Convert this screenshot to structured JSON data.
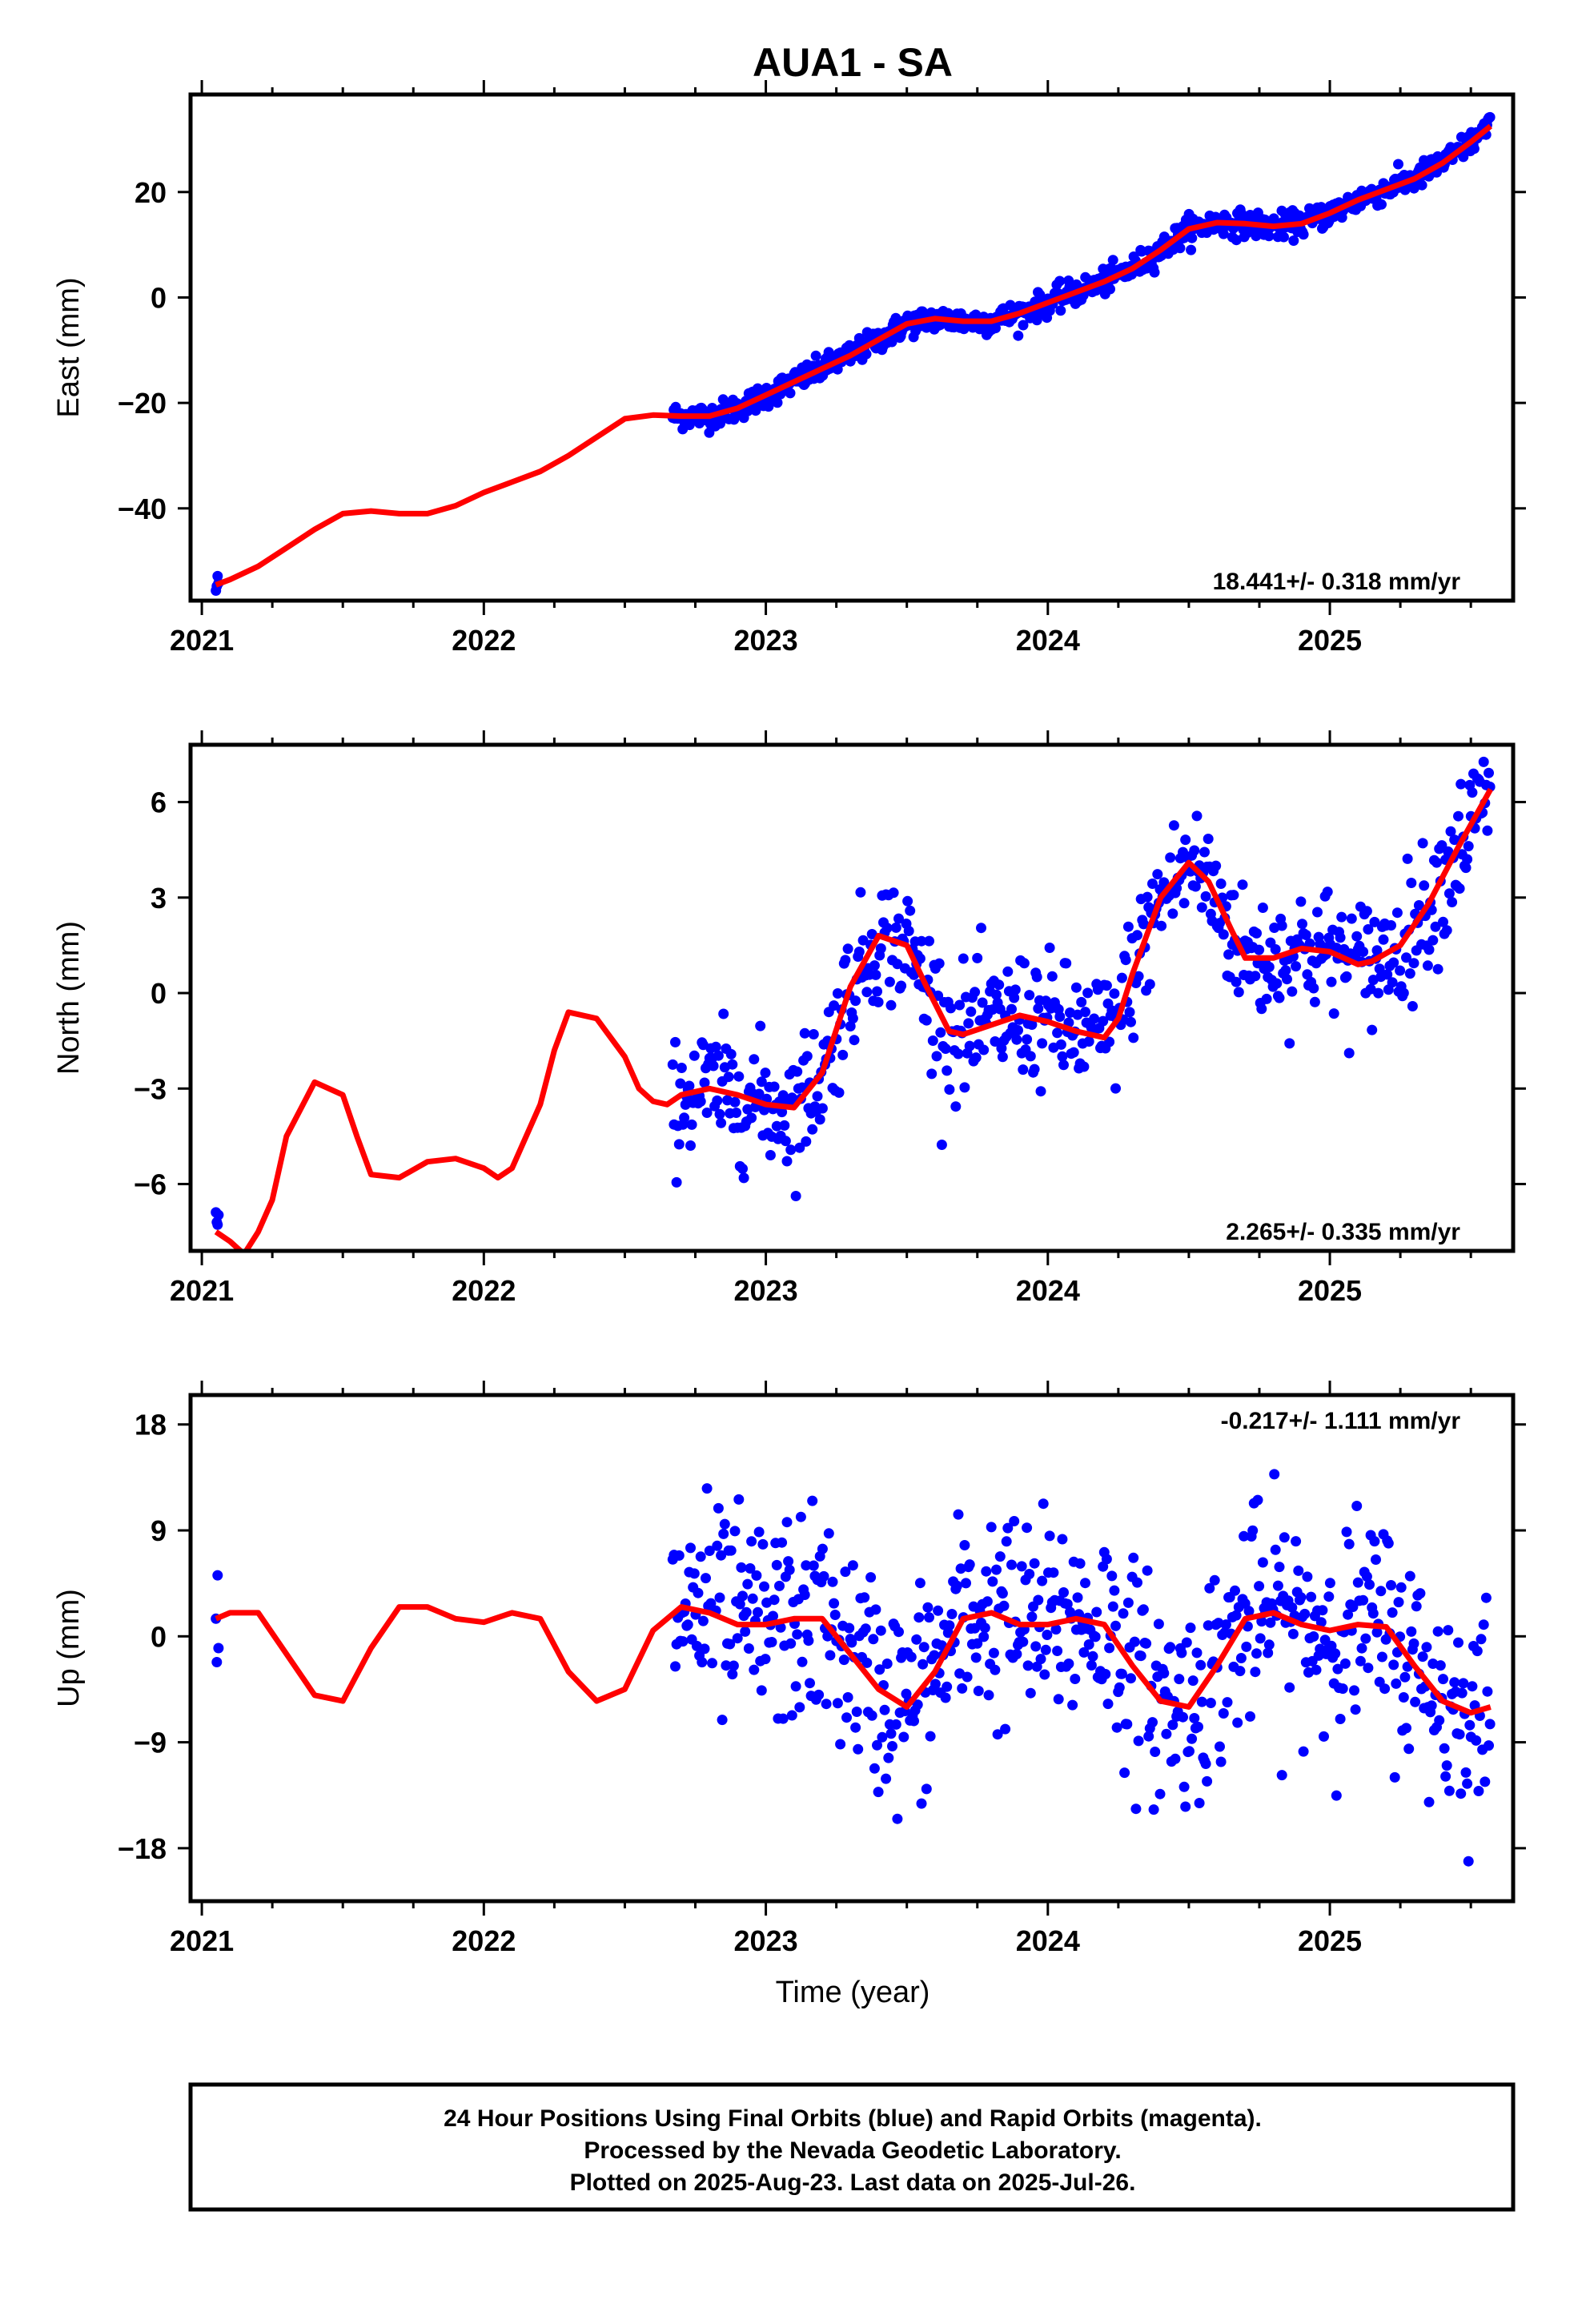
{
  "title": "AUA1 - SA",
  "xlabel": "Time (year)",
  "footer": {
    "line1": "24 Hour Positions Using Final Orbits (blue) and Rapid Orbits (magenta).",
    "line2": "Processed by the Nevada Geodetic Laboratory.",
    "line3": "Plotted on 2025-Aug-23. Last data on 2025-Jul-26."
  },
  "colors": {
    "points": "#0000ff",
    "model": "#ff0000",
    "frame": "#000000"
  },
  "chart_data": [
    {
      "type": "scatter",
      "name": "east",
      "ylabel": "East (mm)",
      "rate_text": "18.441+/- 0.318 mm/yr",
      "xlim": [
        2020.96,
        2025.65
      ],
      "ylim": [
        -57.5,
        38.5
      ],
      "x_ticks": [
        2021,
        2022,
        2023,
        2024,
        2025
      ],
      "x_tick_labels": [
        "2021",
        "2022",
        "2023",
        "2024",
        "2025"
      ],
      "y_ticks": [
        -40,
        -20,
        0,
        20
      ],
      "y_tick_labels": [
        "−40",
        "−20",
        "0",
        "20"
      ],
      "model": {
        "x": [
          2021.05,
          2021.1,
          2021.2,
          2021.3,
          2021.4,
          2021.5,
          2021.6,
          2021.7,
          2021.8,
          2021.9,
          2022.0,
          2022.1,
          2022.2,
          2022.3,
          2022.4,
          2022.5,
          2022.6,
          2022.7,
          2022.8,
          2022.9,
          2023.0,
          2023.1,
          2023.2,
          2023.3,
          2023.4,
          2023.5,
          2023.6,
          2023.7,
          2023.8,
          2023.9,
          2024.0,
          2024.1,
          2024.2,
          2024.3,
          2024.4,
          2024.5,
          2024.6,
          2024.7,
          2024.8,
          2024.9,
          2025.0,
          2025.1,
          2025.2,
          2025.3,
          2025.4,
          2025.5,
          2025.57
        ],
        "y": [
          -54.5,
          -53.5,
          -51,
          -47.5,
          -44,
          -41,
          -40.5,
          -41,
          -41,
          -39.5,
          -37,
          -35,
          -33,
          -30,
          -26.5,
          -23,
          -22.3,
          -22.5,
          -22.5,
          -21,
          -18.5,
          -16,
          -13.5,
          -11,
          -8,
          -5,
          -4,
          -4.5,
          -4.5,
          -3,
          -1,
          1,
          3,
          5.5,
          9,
          13,
          14.2,
          14,
          13.5,
          14,
          16,
          18.5,
          20.5,
          22.5,
          25.5,
          29.5,
          32.5
        ]
      },
      "points_model": "model + seasonal scatter, 2022.67–2025.57 plus two epochs near 2021.05",
      "scatter_sigma": 1.2
    },
    {
      "type": "scatter",
      "name": "north",
      "ylabel": "North (mm)",
      "rate_text": "2.265+/- 0.335 mm/yr",
      "xlim": [
        2020.96,
        2025.65
      ],
      "ylim": [
        -8.1,
        7.8
      ],
      "x_ticks": [
        2021,
        2022,
        2023,
        2024,
        2025
      ],
      "x_tick_labels": [
        "2021",
        "2022",
        "2023",
        "2024",
        "2025"
      ],
      "y_ticks": [
        -6,
        -3,
        0,
        3,
        6
      ],
      "y_tick_labels": [
        "−6",
        "−3",
        "0",
        "3",
        "6"
      ],
      "model": {
        "x": [
          2021.05,
          2021.1,
          2021.15,
          2021.2,
          2021.25,
          2021.3,
          2021.4,
          2021.5,
          2021.55,
          2021.6,
          2021.7,
          2021.8,
          2021.9,
          2022.0,
          2022.05,
          2022.1,
          2022.2,
          2022.25,
          2022.3,
          2022.4,
          2022.5,
          2022.55,
          2022.6,
          2022.65,
          2022.7,
          2022.8,
          2022.9,
          2023.0,
          2023.1,
          2023.2,
          2023.3,
          2023.4,
          2023.5,
          2023.57,
          2023.65,
          2023.7,
          2023.8,
          2023.9,
          2024.0,
          2024.1,
          2024.2,
          2024.25,
          2024.3,
          2024.4,
          2024.5,
          2024.57,
          2024.65,
          2024.7,
          2024.8,
          2024.9,
          2025.0,
          2025.1,
          2025.15,
          2025.25,
          2025.35,
          2025.45,
          2025.57
        ],
        "y": [
          -7.5,
          -7.8,
          -8.2,
          -7.5,
          -6.5,
          -4.5,
          -2.8,
          -3.2,
          -4.5,
          -5.7,
          -5.8,
          -5.3,
          -5.2,
          -5.5,
          -5.8,
          -5.5,
          -3.5,
          -1.8,
          -0.6,
          -0.8,
          -2.0,
          -3.0,
          -3.4,
          -3.5,
          -3.2,
          -3.0,
          -3.2,
          -3.5,
          -3.6,
          -2.5,
          0.2,
          1.8,
          1.5,
          0.2,
          -1.2,
          -1.3,
          -1.0,
          -0.7,
          -0.9,
          -1.2,
          -1.4,
          -0.8,
          0.6,
          3.0,
          4.1,
          3.5,
          2.0,
          1.1,
          1.1,
          1.4,
          1.3,
          0.9,
          1.0,
          1.5,
          2.8,
          4.5,
          6.4
        ]
      },
      "scatter_sigma": 1.0
    },
    {
      "type": "scatter",
      "name": "up",
      "ylabel": "Up (mm)",
      "rate_text": "-0.217+/- 1.111 mm/yr",
      "xlim": [
        2020.96,
        2025.65
      ],
      "ylim": [
        -22.5,
        20.5
      ],
      "x_ticks": [
        2021,
        2022,
        2023,
        2024,
        2025
      ],
      "x_tick_labels": [
        "2021",
        "2022",
        "2023",
        "2024",
        "2025"
      ],
      "y_ticks": [
        -18,
        -9,
        0,
        9,
        18
      ],
      "y_tick_labels": [
        "−18",
        "−9",
        "0",
        "9",
        "18"
      ],
      "model": {
        "x": [
          2021.05,
          2021.1,
          2021.2,
          2021.3,
          2021.4,
          2021.5,
          2021.6,
          2021.7,
          2021.8,
          2021.9,
          2022.0,
          2022.1,
          2022.2,
          2022.3,
          2022.4,
          2022.5,
          2022.6,
          2022.7,
          2022.8,
          2022.9,
          2023.0,
          2023.1,
          2023.2,
          2023.3,
          2023.4,
          2023.5,
          2023.6,
          2023.7,
          2023.8,
          2023.9,
          2024.0,
          2024.1,
          2024.2,
          2024.3,
          2024.4,
          2024.5,
          2024.6,
          2024.7,
          2024.8,
          2024.9,
          2025.0,
          2025.1,
          2025.2,
          2025.3,
          2025.4,
          2025.5,
          2025.57
        ],
        "y": [
          1.5,
          2.0,
          2.0,
          -1.5,
          -5.0,
          -5.5,
          -1.0,
          2.5,
          2.5,
          1.5,
          1.2,
          2.0,
          1.5,
          -3.0,
          -5.5,
          -4.5,
          0.5,
          2.5,
          2.0,
          1.0,
          1.0,
          1.5,
          1.5,
          -1.5,
          -4.5,
          -6.0,
          -3.0,
          1.5,
          2.0,
          1.0,
          1.0,
          1.5,
          1.0,
          -2.5,
          -5.5,
          -6.0,
          -2.5,
          1.5,
          2.0,
          1.0,
          0.5,
          1.0,
          0.8,
          -2.5,
          -5.5,
          -6.5,
          -6.0
        ]
      },
      "scatter_sigma": 4.5
    }
  ]
}
